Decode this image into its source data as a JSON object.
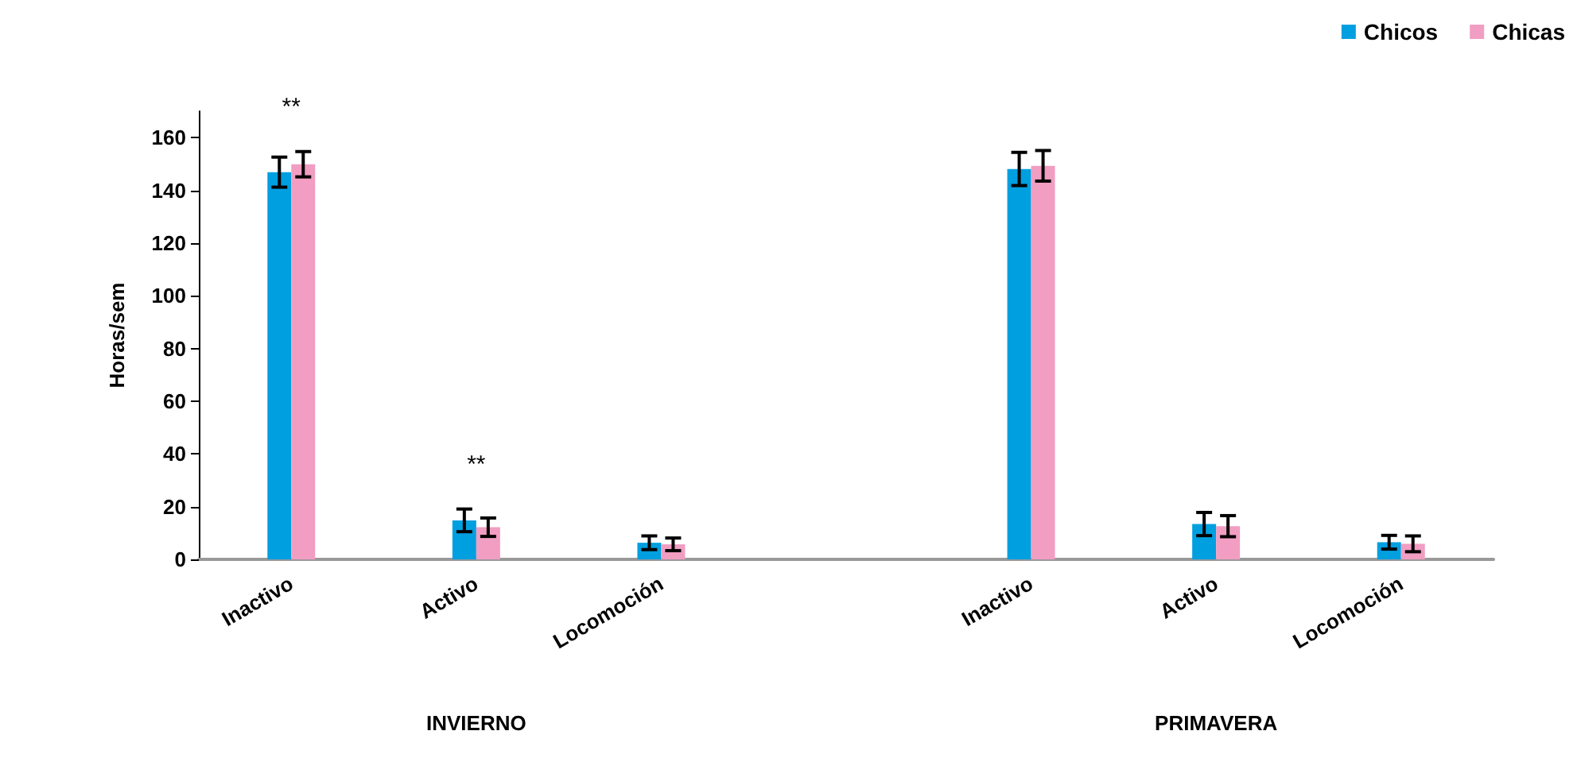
{
  "chart_data": {
    "type": "bar",
    "ylabel": "Horas/sem",
    "categories": [
      "Inactivo",
      "Activo",
      "Locomoción",
      null,
      "Inactivo",
      "Activo",
      "Locomoción"
    ],
    "series": [
      {
        "name": "Chicos",
        "color": "#009fe0",
        "values": [
          146.9,
          14.8,
          6.3,
          null,
          148.1,
          13.4,
          6.5
        ],
        "errors": [
          5.7,
          4.3,
          2.6,
          null,
          6.3,
          4.4,
          2.6
        ]
      },
      {
        "name": "Chicas",
        "color": "#f19ec2",
        "values": [
          149.9,
          12.2,
          5.7,
          null,
          149.3,
          12.6,
          5.9
        ],
        "errors": [
          4.8,
          3.5,
          2.4,
          null,
          5.8,
          4.0,
          3.0
        ]
      }
    ],
    "ylim": [
      0,
      170
    ],
    "yticks": [
      0,
      20,
      40,
      60,
      80,
      100,
      120,
      140,
      160
    ],
    "grid": false,
    "legend": "top right",
    "annotations": [
      "INVIERNO",
      "PRIMAVERA",
      "**",
      "**"
    ]
  }
}
